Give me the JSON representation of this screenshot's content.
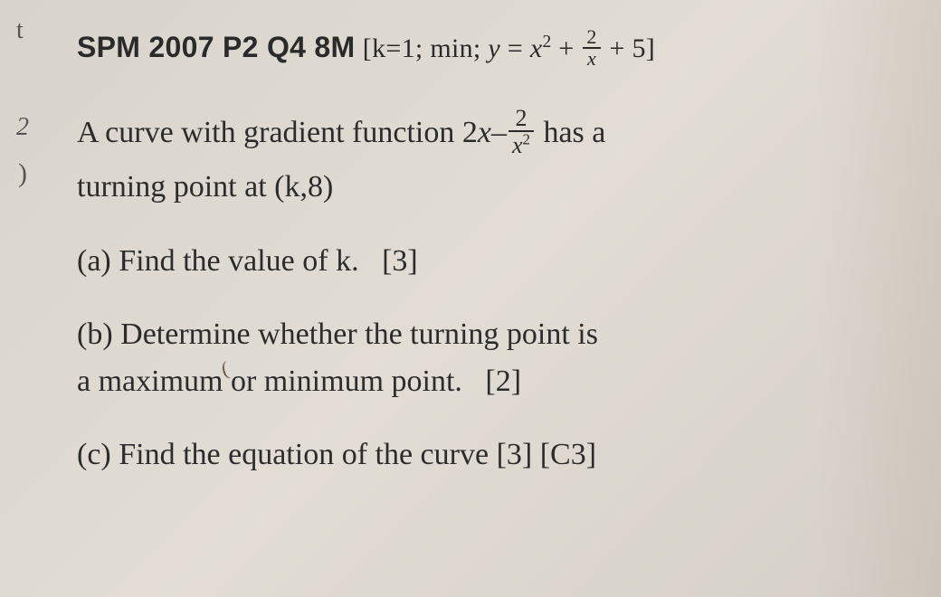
{
  "margin": {
    "top_mark": "t",
    "num_mark": "2",
    "bracket_mark": ")"
  },
  "title": {
    "exam_ref": "SPM 2007 P2 Q4 8M",
    "bracket_open": "[",
    "k_part": "k=1; min; ",
    "y_eq": "y",
    "equals": " = ",
    "x_var": "x",
    "plus1": " + ",
    "frac_num": "2",
    "frac_den": "x",
    "plus_const": " + 5",
    "bracket_close": "]"
  },
  "stem": {
    "line1a": "A curve with gradient function 2",
    "x_var": "x",
    "minus": "–",
    "frac_num": "2",
    "frac_den_x": "x",
    "line1b": " has a",
    "line2": "turning point at (k,8)"
  },
  "parts": {
    "a": {
      "label": "(a) Find the value of k.",
      "marks": "[3]"
    },
    "b": {
      "line1": "(b) Determine whether the turning point is",
      "line2": "a maximum or minimum point.",
      "marks": "[2]"
    },
    "c": {
      "label": "(c) Find the equation of the curve",
      "marks": "[3] [C3]"
    }
  },
  "handmark": "("
}
